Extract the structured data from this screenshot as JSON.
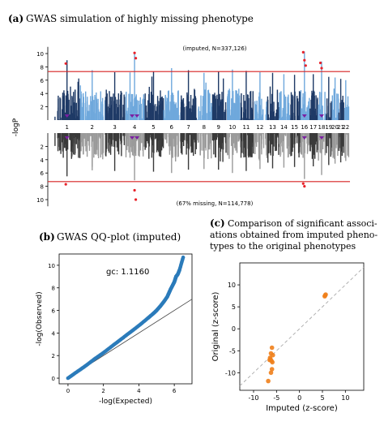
{
  "panel_a": {
    "label": "(a)",
    "title": "GWAS simulation of highly missing phenotype",
    "annotation_top": "(imputed, N=337,126)",
    "annotation_bottom": "(67% missing, N=114,778)",
    "ylabel": "-logP"
  },
  "panel_b": {
    "label": "(b)",
    "title": "GWAS QQ-plot (imputed)",
    "gc_text": "gc:  1.1160"
  },
  "panel_c": {
    "label": "(c)",
    "title_lines": [
      "Comparison of significant associ-",
      "ations obtained from imputed pheno-",
      "types to the original phenotypes"
    ]
  },
  "colors": {
    "dark_navy": "#1f3a66",
    "light_blue": "#6fa8dc",
    "dark_gray": "#3a3a3a",
    "light_gray": "#9a9a9a",
    "threshold": "#d62020",
    "highlight": "#e8222a",
    "triangle": "#7b1fa2",
    "qq_points": "#2b7bba",
    "orange": "#f07f1b"
  },
  "chart_data": [
    {
      "type": "scatter",
      "name": "manhattan-mirrored",
      "chromosomes": [
        "1",
        "2",
        "3",
        "4",
        "5",
        "6",
        "7",
        "8",
        "9",
        "10",
        "11",
        "12",
        "13",
        "14",
        "15",
        "16",
        "17",
        "18",
        "19",
        "20",
        "21",
        "22"
      ],
      "top": {
        "ylim": [
          0,
          11
        ],
        "yticks": [
          2,
          4,
          6,
          8,
          10
        ],
        "threshold": 7.3,
        "chromosome_peaks": [
          9,
          7.5,
          7.2,
          10,
          7.3,
          7.8,
          7.5,
          7.1,
          7.3,
          7.6,
          7.4,
          7.2,
          7.1,
          6.9,
          6.8,
          10.3,
          6.9,
          8.8,
          6.5,
          6.4,
          6.2,
          6.0
        ],
        "significant_points": [
          {
            "chr": "1",
            "logp": 8.5
          },
          {
            "chr": "4",
            "logp": 10.1
          },
          {
            "chr": "4",
            "logp": 9.3
          },
          {
            "chr": "16",
            "logp": 10.2
          },
          {
            "chr": "16",
            "logp": 9.0
          },
          {
            "chr": "16",
            "logp": 8.2
          },
          {
            "chr": "18",
            "logp": 8.6
          },
          {
            "chr": "18",
            "logp": 7.8
          }
        ]
      },
      "bottom": {
        "ylim": [
          0,
          11
        ],
        "yticks": [
          2,
          4,
          6,
          8,
          10
        ],
        "threshold": 7.3,
        "chromosome_peaks": [
          6.5,
          5.6,
          5.7,
          7.1,
          5.8,
          6.0,
          5.5,
          5.4,
          5.5,
          6.0,
          5.7,
          5.4,
          5.3,
          5.2,
          5.1,
          6.9,
          5.0,
          6.3,
          4.8,
          4.6,
          4.4,
          4.2
        ],
        "significant_points": [
          {
            "chr": "1",
            "logp": 7.7
          },
          {
            "chr": "4",
            "logp": 8.6
          },
          {
            "chr": "4",
            "logp": 10.0
          },
          {
            "chr": "16",
            "logp": 7.6
          },
          {
            "chr": "16",
            "logp": 8.0
          }
        ]
      },
      "triangle_markers": [
        {
          "chr": "1"
        },
        {
          "chr": "4"
        },
        {
          "chr": "4"
        },
        {
          "chr": "16"
        },
        {
          "chr": "18"
        }
      ]
    },
    {
      "type": "scatter",
      "name": "qq-plot",
      "xlabel": "-log(Expected)",
      "ylabel": "-log(Observed)",
      "xlim": [
        -0.5,
        7
      ],
      "ylim": [
        -0.5,
        11
      ],
      "xticks": [
        0,
        2,
        4,
        6
      ],
      "yticks": [
        0,
        2,
        4,
        6,
        8,
        10
      ],
      "reference_line": {
        "x": [
          0,
          7
        ],
        "y": [
          0,
          7
        ]
      },
      "points": [
        [
          0.0,
          0.0
        ],
        [
          0.5,
          0.55
        ],
        [
          1.0,
          1.1
        ],
        [
          1.5,
          1.7
        ],
        [
          2.0,
          2.25
        ],
        [
          2.5,
          2.85
        ],
        [
          3.0,
          3.45
        ],
        [
          3.5,
          4.05
        ],
        [
          4.0,
          4.65
        ],
        [
          4.5,
          5.3
        ],
        [
          4.8,
          5.7
        ],
        [
          5.0,
          6.0
        ],
        [
          5.2,
          6.35
        ],
        [
          5.4,
          6.75
        ],
        [
          5.6,
          7.2
        ],
        [
          5.7,
          7.55
        ],
        [
          5.8,
          7.9
        ],
        [
          5.9,
          8.2
        ],
        [
          6.0,
          8.5
        ],
        [
          6.05,
          8.75
        ],
        [
          6.1,
          9.0
        ],
        [
          6.2,
          9.2
        ],
        [
          6.3,
          9.6
        ],
        [
          6.5,
          10.7
        ]
      ]
    },
    {
      "type": "scatter",
      "name": "z-score-comparison",
      "xlabel": "Imputed (z-score)",
      "ylabel": "Original (z-score)",
      "xlim": [
        -13,
        14
      ],
      "ylim": [
        -14,
        15
      ],
      "xticks": [
        -10,
        -5,
        0,
        5,
        10
      ],
      "yticks": [
        -10,
        -5,
        0,
        5,
        10
      ],
      "reference_line": {
        "x": [
          -13,
          14
        ],
        "y": [
          -13,
          14
        ]
      },
      "points": [
        [
          5.6,
          7.6
        ],
        [
          5.7,
          7.8
        ],
        [
          5.5,
          7.4
        ],
        [
          -6.0,
          -4.3
        ],
        [
          -6.2,
          -5.6
        ],
        [
          -5.8,
          -6.0
        ],
        [
          -6.4,
          -6.6
        ],
        [
          -6.3,
          -7.0
        ],
        [
          -6.1,
          -7.3
        ],
        [
          -5.9,
          -7.6
        ],
        [
          -6.5,
          -7.1
        ],
        [
          -6.0,
          -9.2
        ],
        [
          -6.2,
          -10.0
        ],
        [
          -6.8,
          -11.9
        ]
      ]
    }
  ]
}
